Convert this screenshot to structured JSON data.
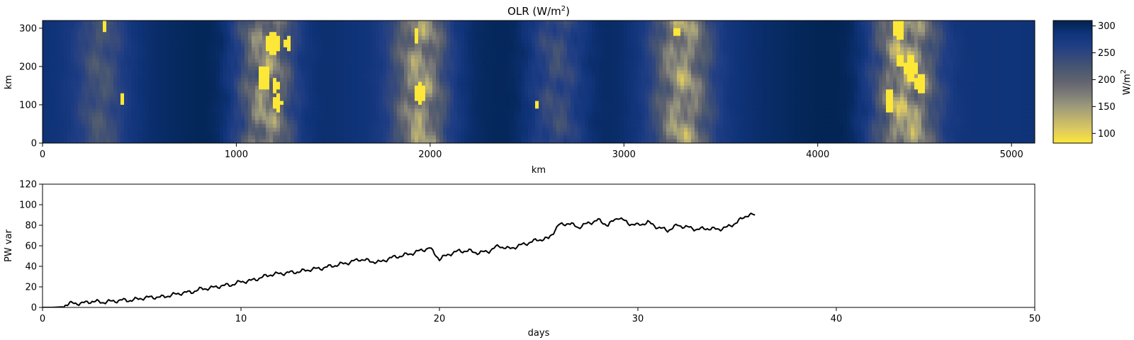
{
  "chart_data": [
    {
      "type": "heatmap",
      "title_main": "OLR (W/m",
      "title_sup": "2",
      "title_end": ")",
      "xlabel": "km",
      "ylabel": "km",
      "xlim": [
        0,
        5120
      ],
      "ylim": [
        0,
        320
      ],
      "xticks": [
        "0",
        "1000",
        "2000",
        "3000",
        "4000",
        "5000"
      ],
      "xtick_values": [
        0,
        1000,
        2000,
        3000,
        4000,
        5000
      ],
      "yticks": [
        "0",
        "100",
        "200",
        "300"
      ],
      "ytick_values": [
        0,
        100,
        200,
        300
      ],
      "colormap": "cividis_r",
      "colorbar": {
        "label_main": "W/m",
        "label_sup": "2",
        "range": [
          82,
          310
        ],
        "ticks": [
          "100",
          "150",
          "200",
          "250",
          "300"
        ],
        "tick_values": [
          100,
          150,
          200,
          250,
          300
        ],
        "colors": [
          "#fde737",
          "#e0cc5e",
          "#bfb26e",
          "#9c9a7b",
          "#7d7c78",
          "#62646f",
          "#4a5870",
          "#36497b",
          "#1e3d84",
          "#0f3378",
          "#00224e"
        ]
      },
      "convective_bands": [
        {
          "center_km": 300,
          "width_km": 320,
          "intensity": 0.35
        },
        {
          "center_km": 1150,
          "width_km": 380,
          "intensity": 0.8
        },
        {
          "center_km": 1950,
          "width_km": 360,
          "intensity": 0.75
        },
        {
          "center_km": 2650,
          "width_km": 360,
          "intensity": 0.4
        },
        {
          "center_km": 3300,
          "width_km": 380,
          "intensity": 0.75
        },
        {
          "center_km": 4450,
          "width_km": 420,
          "intensity": 0.9
        }
      ],
      "cold_cores": [
        {
          "x_km": 320,
          "y_km": 310,
          "r_km": 15
        },
        {
          "x_km": 410,
          "y_km": 115,
          "r_km": 12
        },
        {
          "x_km": 1190,
          "y_km": 262,
          "r_km": 32
        },
        {
          "x_km": 1265,
          "y_km": 260,
          "r_km": 18
        },
        {
          "x_km": 1140,
          "y_km": 170,
          "r_km": 32
        },
        {
          "x_km": 1200,
          "y_km": 150,
          "r_km": 18
        },
        {
          "x_km": 1215,
          "y_km": 105,
          "r_km": 20
        },
        {
          "x_km": 1930,
          "y_km": 280,
          "r_km": 15
        },
        {
          "x_km": 1945,
          "y_km": 130,
          "r_km": 28
        },
        {
          "x_km": 2550,
          "y_km": 100,
          "r_km": 12
        },
        {
          "x_km": 3270,
          "y_km": 290,
          "r_km": 14
        },
        {
          "x_km": 4420,
          "y_km": 300,
          "r_km": 30
        },
        {
          "x_km": 4370,
          "y_km": 120,
          "r_km": 20
        },
        {
          "x_km": 4480,
          "y_km": 195,
          "r_km": 32
        },
        {
          "x_km": 4530,
          "y_km": 155,
          "r_km": 24
        },
        {
          "x_km": 4370,
          "y_km": 95,
          "r_km": 14
        },
        {
          "x_km": 4420,
          "y_km": 215,
          "r_km": 18
        }
      ]
    },
    {
      "type": "line",
      "xlabel": "days",
      "ylabel": "PW var",
      "xlim": [
        0,
        50
      ],
      "ylim": [
        0,
        120
      ],
      "xticks": [
        "0",
        "10",
        "20",
        "30",
        "40",
        "50"
      ],
      "xtick_values": [
        0,
        10,
        20,
        30,
        40,
        50
      ],
      "yticks": [
        "0",
        "20",
        "40",
        "60",
        "80",
        "100",
        "120"
      ],
      "ytick_values": [
        0,
        20,
        40,
        60,
        80,
        100,
        120
      ],
      "line_color": "#000000",
      "series": [
        {
          "x": [
            0,
            0.5,
            1.0,
            1.2,
            1.5,
            2.0,
            2.5,
            3.0,
            3.5,
            4.0,
            4.5,
            5.0,
            5.5,
            6.0,
            6.5,
            7.0,
            7.5,
            8.0,
            8.5,
            9.0,
            9.5,
            10.0,
            10.5,
            11.0,
            11.5,
            12.0,
            12.5,
            13.0,
            13.5,
            14.0,
            14.5,
            15.0,
            15.5,
            16.0,
            16.5,
            17.0,
            17.5,
            18.0,
            18.5,
            19.0,
            19.5,
            20.0,
            20.5,
            21.0,
            21.5,
            22.0,
            22.5,
            23.0,
            23.5,
            24.0,
            24.5,
            25.0,
            25.5,
            26.0,
            26.5,
            27.0,
            27.5,
            28.0,
            28.5,
            29.0,
            29.5,
            30.0,
            30.5,
            31.0,
            31.5,
            32.0,
            32.5,
            33.0,
            33.5,
            34.0,
            34.5,
            35.0,
            35.5,
            35.9
          ],
          "y": [
            0,
            0,
            0.5,
            3,
            4,
            4,
            6,
            5,
            6,
            7,
            7,
            9,
            10,
            10,
            12,
            14,
            15,
            18,
            19,
            21,
            22,
            25,
            26,
            29,
            32,
            33,
            34,
            35,
            37,
            38,
            40,
            42,
            44,
            47,
            45,
            44,
            48,
            50,
            52,
            55,
            58,
            47,
            52,
            55,
            55,
            53,
            55,
            60,
            57,
            60,
            63,
            66,
            67,
            80,
            82,
            78,
            82,
            85,
            80,
            88,
            82,
            80,
            83,
            78,
            75,
            80,
            78,
            76,
            77,
            76,
            78,
            83,
            90,
            90
          ]
        }
      ]
    }
  ]
}
